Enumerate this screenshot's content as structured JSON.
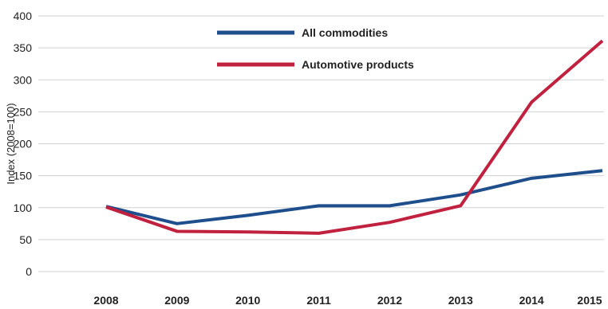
{
  "chart_data": {
    "type": "line",
    "title": "",
    "xlabel": "",
    "ylabel": "Index (2008=100)",
    "ylim": [
      0,
      400
    ],
    "y_ticks": [
      "0",
      "50",
      "100",
      "150",
      "200",
      "250",
      "300",
      "350",
      "400"
    ],
    "categories": [
      "2008",
      "2009",
      "2010",
      "2011",
      "2012",
      "2013",
      "2014",
      "2015"
    ],
    "grid": true,
    "legend_position": "top-center",
    "series": [
      {
        "name": "All commodities",
        "color": "#1f4e8c",
        "values": [
          102,
          75,
          88,
          103,
          103,
          120,
          146,
          158
        ]
      },
      {
        "name": "Automotive products",
        "color": "#c0213f",
        "values": [
          101,
          63,
          62,
          60,
          77,
          103,
          265,
          361
        ]
      }
    ]
  }
}
